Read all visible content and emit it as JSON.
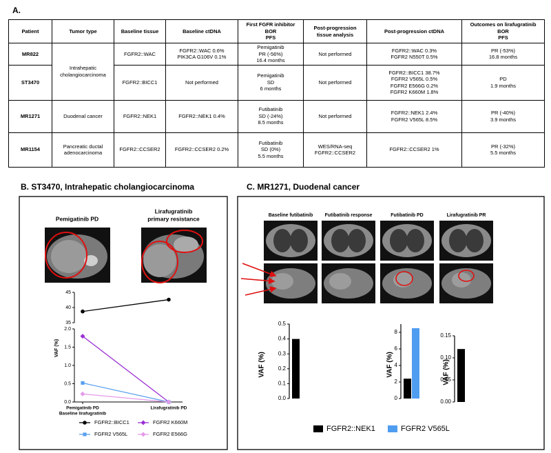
{
  "table": {
    "label": "A.",
    "header": [
      [
        "Patient"
      ],
      [
        "Tumor type"
      ],
      [
        "Baseline tissue"
      ],
      [
        "Baseline ctDNA"
      ],
      [
        "First FGFR inhibitor",
        "BOR",
        "PFS"
      ],
      [
        "Post-progression",
        "tissue analysis"
      ],
      [
        "Post-progression ctDNA"
      ],
      [
        "Outcomes on lirafugratinib",
        "BOR",
        "PFS"
      ]
    ],
    "rows": [
      [
        [
          "MR822"
        ],
        [
          "Intrahepatic",
          "cholangiocarcinoma"
        ],
        [
          "FGFR2::WAC"
        ],
        [
          "FGFR2::WAC 0.6%",
          "PIK3CA G106V 0.1%"
        ],
        [
          "Pemigatinib",
          "PR (-56%)",
          "16.4 months"
        ],
        [
          "Not performed"
        ],
        [
          "FGFR2::WAC 0.3%",
          "FGFR2 N550T 0.5%"
        ],
        [
          "PR (-53%)",
          "16.8 months"
        ]
      ],
      [
        [
          "ST3470"
        ],
        [
          "FGFR2::BICC1"
        ],
        [
          "Not performed"
        ],
        [
          "Pemigatinib",
          "SD",
          "6 months"
        ],
        [
          "Not performed"
        ],
        [
          "FGFR2::BICC1 38.7%",
          "FGFR2 V565L 0.5%",
          "FGFR2 E566G 0.2%",
          "FGFR2  K660M 1.8%"
        ],
        [
          "PD",
          "1.9 months"
        ]
      ],
      [
        [
          "MR1271"
        ],
        [
          "Duodenal cancer"
        ],
        [
          "FGFR2::NEK1"
        ],
        [
          "FGFR2::NEK1 0.4%"
        ],
        [
          "Futibatinib",
          "SD (-24%)",
          "8.5 months"
        ],
        [
          "Not performed"
        ],
        [
          "FGFR2::NEK1 2.4%",
          "FGFR2 V565L 8.5%"
        ],
        [
          "PR (-40%)",
          "3.9 months"
        ]
      ],
      [
        [
          "MR1154"
        ],
        [
          "Pancreatic ductal",
          "adenocarcinoma"
        ],
        [
          "FGFR2::CCSER2"
        ],
        [
          "FGFR2::CCSER2 0.2%"
        ],
        [
          "Futibatinib",
          "SD (0%)",
          "5.5 months"
        ],
        [
          "WES/RNA-seq",
          "FGFR2::CCSER2"
        ],
        [
          "FGFR2::CCSER2 1%"
        ],
        [
          "PR (-32%)",
          "5.5 months"
        ]
      ]
    ]
  },
  "figure": {
    "panel_b": {
      "type": "line",
      "title": "B. ST3470, Intrahepatic cholangiocarcinoma",
      "image_labels": [
        [
          "Pemigatinib PD"
        ],
        [
          "Lirafugratinib",
          "primary resistance"
        ]
      ],
      "ylabel": "VAF (%)",
      "categories": [
        [
          "Pemigatinib PD",
          "Baseline lirafugratinib"
        ],
        [
          "Lirafugratinib PD"
        ]
      ],
      "segments": [
        {
          "ylim": [
            0,
            2
          ],
          "yticks": [
            {
              "value": 0,
              "label": "0.0"
            },
            {
              "value": 0.5,
              "label": "0.5"
            },
            {
              "value": 1,
              "label": "1.0"
            },
            {
              "value": 1.5,
              "label": "1.5"
            },
            {
              "value": 2,
              "label": "2.0"
            }
          ]
        },
        {
          "ylim": [
            35,
            45
          ],
          "yticks": [
            35,
            40,
            45
          ]
        }
      ],
      "series": [
        {
          "name": "FGFR2::BICC1",
          "color": "#000000",
          "marker": "circle",
          "values": [
            38.7,
            42.6
          ]
        },
        {
          "name": "FGFR2 K660M",
          "color": "#9b2fd4",
          "marker": "diamond",
          "values": [
            1.8,
            0
          ]
        },
        {
          "name": "FGFR2 V565L",
          "color": "#5aa0f0",
          "marker": "square",
          "values": [
            0.52,
            0
          ]
        },
        {
          "name": "FGFR2 E566G",
          "color": "#e59ae8",
          "marker": "diamond",
          "values": [
            0.22,
            0
          ]
        }
      ]
    },
    "panel_c": {
      "title": "C. MR1271, Duodenal cancer",
      "image_labels": [
        "Baseline futibatinib",
        "Futibatinib response",
        "Futibatinib PD",
        "Lirafugratinib PR"
      ],
      "legend": [
        {
          "name": "FGFR2::NEK1",
          "color": "#000000"
        },
        {
          "name": "FGFR2 V565L",
          "color": "#4f9df0"
        }
      ],
      "charts": [
        {
          "type": "bar",
          "ylabel": "VAF (%)",
          "ylim": [
            0,
            0.5
          ],
          "yticks": [
            {
              "value": 0,
              "label": "0.0"
            },
            0.1,
            0.2,
            0.3,
            0.4,
            0.5
          ],
          "values": [
            0.4
          ],
          "colors": [
            "#000000"
          ]
        },
        {
          "type": "bar",
          "ylabel": "VAF (%)",
          "ylim": [
            0,
            9
          ],
          "yticks": [
            0,
            2,
            4,
            6,
            8
          ],
          "values": [
            2.4,
            8.5
          ],
          "colors": [
            "#000000",
            "#4f9df0"
          ]
        },
        {
          "type": "bar",
          "ylabel": "VAF (%)",
          "ylim": [
            0,
            0.15
          ],
          "yticks": [
            {
              "value": 0,
              "label": "0.00"
            },
            0.05,
            {
              "value": 0.1,
              "label": "0.10"
            },
            0.15
          ],
          "values": [
            0.12
          ],
          "colors": [
            "#000000"
          ]
        }
      ]
    }
  }
}
